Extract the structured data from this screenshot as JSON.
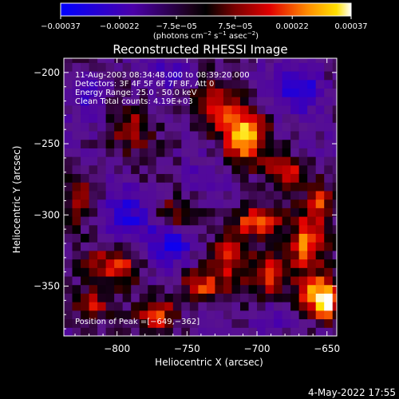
{
  "chart_data": {
    "type": "heatmap",
    "title": "Reconstructed RHESSI Image",
    "xlabel": "Heliocentric X (arcsec)",
    "ylabel": "Heliocentric Y (arcsec)",
    "xlim": [
      -838,
      -643
    ],
    "ylim": [
      -385,
      -190
    ],
    "x_ticks": [
      -800,
      -750,
      -700,
      -650
    ],
    "y_ticks": [
      -200,
      -250,
      -300,
      -350
    ],
    "x_tick_labels": [
      "−800",
      "−750",
      "−700",
      "−650"
    ],
    "y_tick_labels": [
      "−200",
      "−250",
      "−300",
      "−350"
    ],
    "colorbar": {
      "range": [
        -0.00037,
        0.00037
      ],
      "tick_values": [
        -0.00037,
        -0.00022,
        -7.5e-05,
        7.5e-05,
        0.00022,
        0.00037
      ],
      "tick_labels": [
        "−0.00037",
        "−0.00022",
        "−7.5e−05",
        "7.5e−05",
        "0.00022",
        "0.00037"
      ],
      "unit_main": "(photons cm",
      "unit_exp1": "−2",
      "unit_mid": " s",
      "unit_exp2": "−1",
      "unit_mid2": " asec",
      "unit_exp3": "−2",
      "unit_end": ")"
    },
    "annotations": [
      "11‐Aug‐2003 08:34:48.000 to 08:39:20.000",
      "Detectors: 3F 4F 5F 6F 7F 8F, Att 0",
      "Energy Range: 25.0 ‐ 50.0 keV",
      "Clean    Total counts: 4.19E+03"
    ],
    "peak_label": "Position of Peak =[−649,−362]",
    "peak": [
      -649,
      -362
    ],
    "grid": false,
    "description_of_map": "Noisy flux map; high intensity (orange to yellow) concentrated in the lower right and a bright blob near (-710,-245); negative (blue/purple) regions on left and upper right.",
    "blobs": [
      {
        "x": -710,
        "y": -245,
        "value": 0.00036,
        "sx": 10,
        "sy": 12
      },
      {
        "x": -700,
        "y": -305,
        "value": 0.0003,
        "sx": 12,
        "sy": 8
      },
      {
        "x": -690,
        "y": -340,
        "value": 0.00026,
        "sx": 10,
        "sy": 10
      },
      {
        "x": -660,
        "y": -355,
        "value": 0.00034,
        "sx": 8,
        "sy": 10
      },
      {
        "x": -649,
        "y": -362,
        "value": 0.00037,
        "sx": 6,
        "sy": 8
      },
      {
        "x": -665,
        "y": -320,
        "value": 0.00028,
        "sx": 8,
        "sy": 12
      },
      {
        "x": -740,
        "y": -350,
        "value": 0.00024,
        "sx": 10,
        "sy": 8
      },
      {
        "x": -770,
        "y": -370,
        "value": 0.00026,
        "sx": 8,
        "sy": 8
      },
      {
        "x": -800,
        "y": -335,
        "value": 0.00022,
        "sx": 12,
        "sy": 8
      },
      {
        "x": -820,
        "y": -365,
        "value": 0.0002,
        "sx": 8,
        "sy": 8
      },
      {
        "x": -760,
        "y": -300,
        "value": 0.00015,
        "sx": 10,
        "sy": 8
      },
      {
        "x": -730,
        "y": -225,
        "value": 0.00016,
        "sx": 14,
        "sy": 12
      },
      {
        "x": -790,
        "y": -240,
        "value": 0.00014,
        "sx": 10,
        "sy": 10
      },
      {
        "x": -825,
        "y": -285,
        "value": 0.00015,
        "sx": 8,
        "sy": 14
      },
      {
        "x": -680,
        "y": -270,
        "value": 0.00018,
        "sx": 10,
        "sy": 8
      },
      {
        "x": -720,
        "y": -330,
        "value": 0.0002,
        "sx": 8,
        "sy": 10
      },
      {
        "x": -655,
        "y": -290,
        "value": 0.00022,
        "sx": 6,
        "sy": 10
      },
      {
        "x": -790,
        "y": -300,
        "value": -0.00018,
        "sx": 14,
        "sy": 14
      },
      {
        "x": -760,
        "y": -320,
        "value": -0.00022,
        "sx": 12,
        "sy": 10
      },
      {
        "x": -820,
        "y": -215,
        "value": -0.00016,
        "sx": 10,
        "sy": 14
      },
      {
        "x": -670,
        "y": -210,
        "value": -0.0002,
        "sx": 14,
        "sy": 12
      },
      {
        "x": -690,
        "y": -375,
        "value": -0.00016,
        "sx": 10,
        "sy": 8
      },
      {
        "x": -760,
        "y": -200,
        "value": -0.00012,
        "sx": 12,
        "sy": 8
      },
      {
        "x": -740,
        "y": -275,
        "value": -0.0001,
        "sx": 10,
        "sy": 10
      }
    ]
  },
  "footer": {
    "date": "4‐May‐2022 17:55"
  }
}
